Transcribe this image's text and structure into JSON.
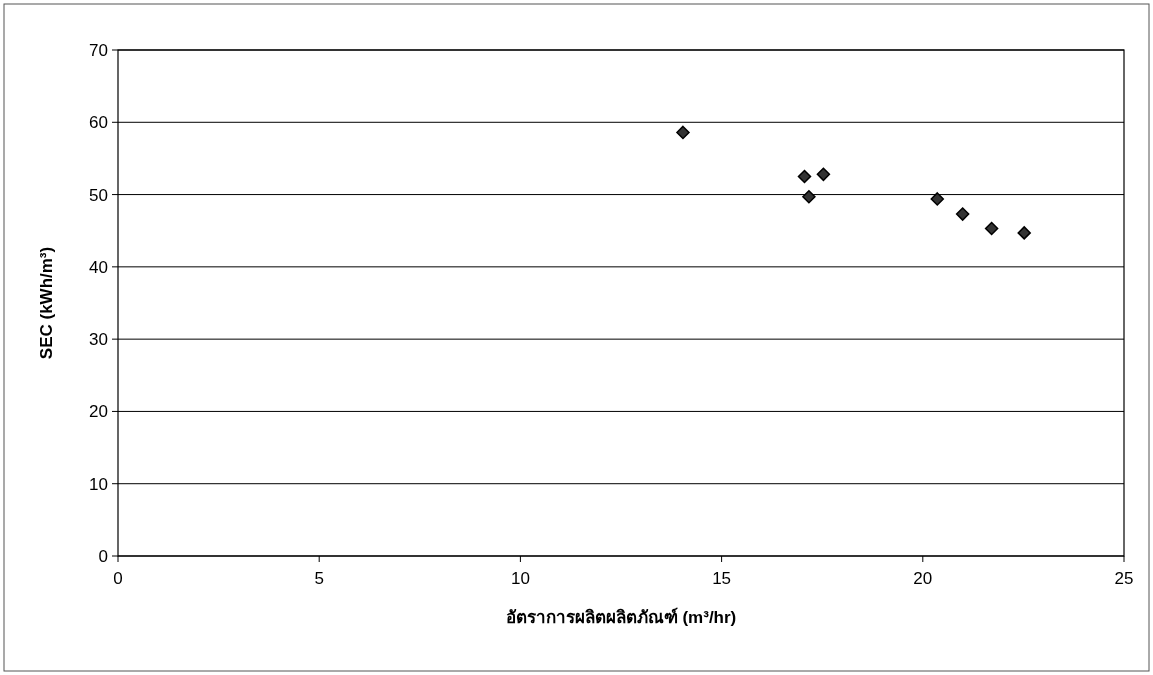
{
  "chart_data": {
    "type": "scatter",
    "xlabel": "อัตราการผลิตผลิตภัณฑ์ (m³/hr)",
    "ylabel": "SEC (kWh/m³)",
    "x": [
      14.04,
      17.06,
      17.17,
      17.53,
      20.36,
      20.99,
      21.71,
      22.52
    ],
    "values": [
      58.6,
      52.5,
      49.7,
      52.8,
      49.4,
      47.3,
      45.3,
      44.7
    ],
    "color": "#333333",
    "marker": "diamond",
    "grid": "y",
    "xlim": [
      0,
      25
    ],
    "ylim": [
      0,
      70
    ],
    "xticks": [
      0,
      5,
      10,
      15,
      20,
      25
    ],
    "yticks": [
      0,
      10,
      20,
      30,
      40,
      50,
      60,
      70
    ]
  }
}
